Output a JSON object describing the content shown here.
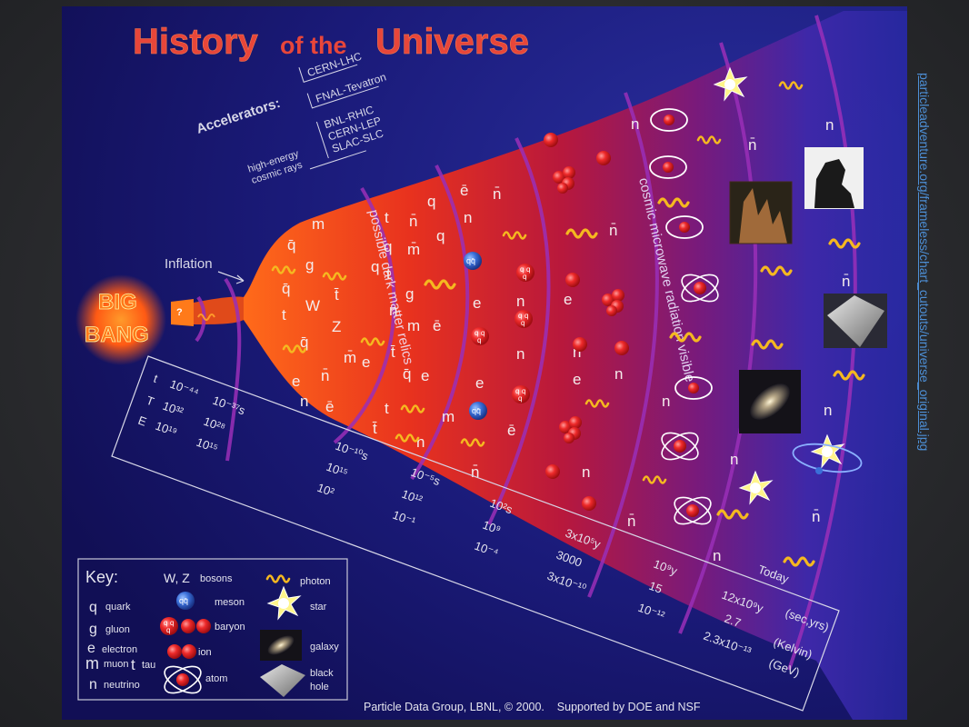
{
  "title": {
    "part1": "History",
    "part2": "of the",
    "part3": "Universe"
  },
  "accelerators": {
    "label": "Accelerators:",
    "items": [
      "CERN-LHC",
      "FNAL-Tevatron",
      "BNL-RHIC",
      "CERN-LEP",
      "SLAC-SLC"
    ],
    "cosmic_rays_1": "high-energy",
    "cosmic_rays_2": "cosmic rays"
  },
  "inflation_label": "Inflation",
  "big_bang": {
    "line1": "BIG",
    "line2": "BANG"
  },
  "band_labels": {
    "dark_matter": "possible dark matter relics",
    "cmb": "cosmic microwave radiation visible"
  },
  "particles": {
    "n": "n",
    "nbar": "n̄",
    "e": "e",
    "ebar": "ē",
    "m": "m",
    "mbar": "m̄",
    "t": "t",
    "tbar": "t̄",
    "q": "q",
    "qbar": "q̄",
    "g": "g",
    "w": "W",
    "z": "Z",
    "meson": "qq̄",
    "q_mark": "?"
  },
  "scale": {
    "rows": [
      "t",
      "T",
      "E"
    ],
    "col1": [
      "10⁻⁴⁴",
      "10³²",
      "10¹⁹"
    ],
    "col2": [
      "10⁻³⁷s",
      "10²⁸",
      "10¹⁵"
    ],
    "col3": [
      "10⁻¹⁰s",
      "10¹⁵",
      "10²"
    ],
    "col4": [
      "10⁻⁵s",
      "10¹²",
      "10⁻¹"
    ],
    "col5": [
      "10²s",
      "10⁹",
      "10⁻⁴"
    ],
    "col6": [
      "3x10⁵y",
      "3000",
      "3x10⁻¹⁰"
    ],
    "col7": [
      "10⁹y",
      "15",
      "10⁻¹²"
    ],
    "col8": [
      "Today",
      "12x10⁹y",
      "2.7",
      "2.3x10⁻¹³"
    ],
    "units": [
      "(sec,yrs)",
      "(Kelvin)",
      "(GeV)"
    ]
  },
  "key": {
    "title": "Key:",
    "quark": "quark",
    "gluon": "gluon",
    "electron": "electron",
    "muon": "muon",
    "tau": "tau",
    "neutrino": "neutrino",
    "bosons_symbol": "W, Z",
    "bosons": "bosons",
    "meson": "meson",
    "baryon": "baryon",
    "ion": "ion",
    "atom": "atom",
    "photon": "photon",
    "star": "star",
    "galaxy": "galaxy",
    "black_hole_1": "black",
    "black_hole_2": "hole"
  },
  "credit": "Particle Data Group, LBNL, © 2000.    Supported by DOE and NSF",
  "source_link": "particleadventure.org/frameless/chart_cutouts/universe_original.jpg",
  "colors": {
    "background": "#14125e",
    "title": "#e8463a",
    "photon": "#f5b820",
    "baryon": "#e3262b",
    "meson": "#3a6fd8",
    "star": "#fff58a"
  }
}
